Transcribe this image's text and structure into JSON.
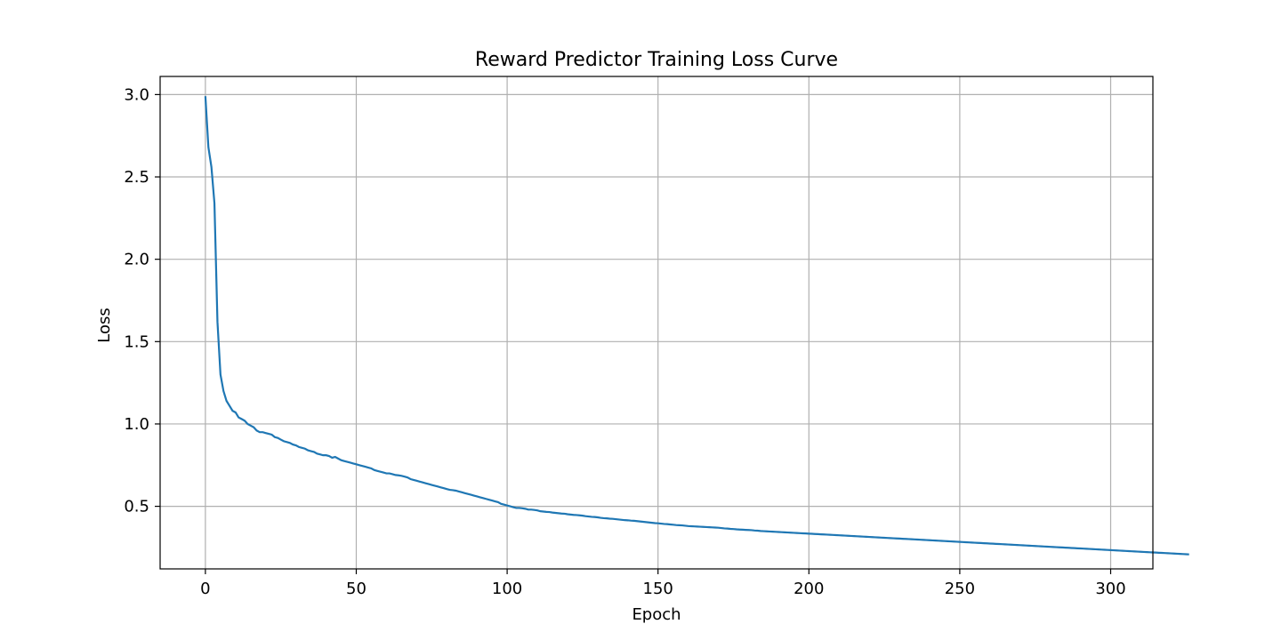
{
  "chart_data": {
    "type": "line",
    "title": "Reward Predictor Training Loss Curve",
    "xlabel": "Epoch",
    "ylabel": "Loss",
    "xlim": [
      -15,
      314
    ],
    "ylim": [
      0.12,
      3.11
    ],
    "xticks": [
      0,
      50,
      100,
      150,
      200,
      250,
      300
    ],
    "yticks": [
      0.5,
      1.0,
      1.5,
      2.0,
      2.5,
      3.0
    ],
    "xtick_labels": [
      "0",
      "50",
      "100",
      "150",
      "200",
      "250",
      "300"
    ],
    "ytick_labels": [
      "0.5",
      "1.0",
      "1.5",
      "2.0",
      "2.5",
      "3.0"
    ],
    "grid": true,
    "legend": false,
    "line_color": "#1f77b4",
    "series": [
      {
        "x_start": 0,
        "x_step": 1,
        "values": [
          2.99,
          2.68,
          2.56,
          2.34,
          1.62,
          1.3,
          1.2,
          1.14,
          1.11,
          1.08,
          1.07,
          1.04,
          1.03,
          1.02,
          1.0,
          0.99,
          0.98,
          0.96,
          0.95,
          0.95,
          0.945,
          0.94,
          0.935,
          0.92,
          0.915,
          0.905,
          0.895,
          0.89,
          0.885,
          0.875,
          0.87,
          0.86,
          0.855,
          0.85,
          0.84,
          0.835,
          0.83,
          0.82,
          0.815,
          0.81,
          0.81,
          0.805,
          0.795,
          0.8,
          0.79,
          0.78,
          0.775,
          0.77,
          0.765,
          0.76,
          0.755,
          0.75,
          0.745,
          0.74,
          0.735,
          0.73,
          0.72,
          0.715,
          0.71,
          0.705,
          0.7,
          0.7,
          0.695,
          0.69,
          0.688,
          0.685,
          0.68,
          0.675,
          0.665,
          0.66,
          0.655,
          0.65,
          0.645,
          0.64,
          0.635,
          0.63,
          0.625,
          0.62,
          0.615,
          0.61,
          0.605,
          0.6,
          0.598,
          0.595,
          0.59,
          0.585,
          0.58,
          0.575,
          0.57,
          0.565,
          0.56,
          0.555,
          0.55,
          0.545,
          0.54,
          0.535,
          0.53,
          0.525,
          0.515,
          0.51,
          0.505,
          0.5,
          0.495,
          0.49,
          0.49,
          0.488,
          0.485,
          0.48,
          0.48,
          0.478,
          0.475,
          0.47,
          0.468,
          0.466,
          0.465,
          0.462,
          0.46,
          0.458,
          0.456,
          0.455,
          0.452,
          0.45,
          0.448,
          0.447,
          0.445,
          0.443,
          0.44,
          0.438,
          0.436,
          0.435,
          0.433,
          0.43,
          0.428,
          0.427,
          0.425,
          0.424,
          0.422,
          0.42,
          0.418,
          0.416,
          0.415,
          0.413,
          0.412,
          0.41,
          0.408,
          0.406,
          0.404,
          0.402,
          0.4,
          0.398,
          0.397,
          0.395,
          0.393,
          0.392,
          0.39,
          0.388,
          0.386,
          0.385,
          0.384,
          0.382,
          0.38,
          0.379,
          0.378,
          0.377,
          0.376,
          0.375,
          0.374,
          0.373,
          0.372,
          0.371,
          0.37,
          0.368,
          0.366,
          0.365,
          0.363,
          0.362,
          0.36,
          0.359,
          0.358,
          0.357,
          0.356,
          0.355,
          0.353,
          0.352,
          0.35,
          0.349,
          0.348,
          0.347,
          0.346,
          0.345,
          0.344,
          0.343,
          0.342,
          0.341,
          0.34,
          0.339,
          0.338,
          0.337,
          0.336,
          0.335,
          0.334,
          0.333,
          0.332,
          0.331,
          0.33,
          0.329,
          0.328,
          0.327,
          0.326,
          0.325,
          0.324,
          0.323,
          0.322,
          0.321,
          0.32,
          0.319,
          0.318,
          0.317,
          0.316,
          0.315,
          0.314,
          0.313,
          0.312,
          0.311,
          0.31,
          0.309,
          0.308,
          0.307,
          0.306,
          0.305,
          0.304,
          0.303,
          0.302,
          0.301,
          0.3,
          0.299,
          0.298,
          0.297,
          0.296,
          0.295,
          0.294,
          0.293,
          0.292,
          0.291,
          0.29,
          0.289,
          0.288,
          0.287,
          0.286,
          0.285,
          0.284,
          0.283,
          0.282,
          0.281,
          0.28,
          0.279,
          0.278,
          0.277,
          0.276,
          0.275,
          0.274,
          0.273,
          0.272,
          0.271,
          0.27,
          0.269,
          0.268,
          0.267,
          0.266,
          0.265,
          0.264,
          0.263,
          0.262,
          0.261,
          0.26,
          0.259,
          0.258,
          0.257,
          0.256,
          0.255,
          0.254,
          0.253,
          0.252,
          0.251,
          0.25,
          0.249,
          0.248,
          0.247,
          0.246,
          0.245,
          0.244,
          0.243,
          0.242,
          0.241,
          0.24,
          0.239,
          0.238,
          0.237,
          0.236,
          0.235,
          0.234,
          0.233,
          0.232,
          0.231,
          0.23,
          0.229,
          0.228,
          0.227,
          0.226,
          0.225,
          0.224,
          0.223,
          0.222,
          0.221,
          0.22,
          0.219,
          0.218,
          0.217,
          0.216,
          0.215,
          0.214,
          0.213,
          0.212,
          0.211,
          0.21,
          0.209,
          0.208
        ]
      }
    ]
  }
}
